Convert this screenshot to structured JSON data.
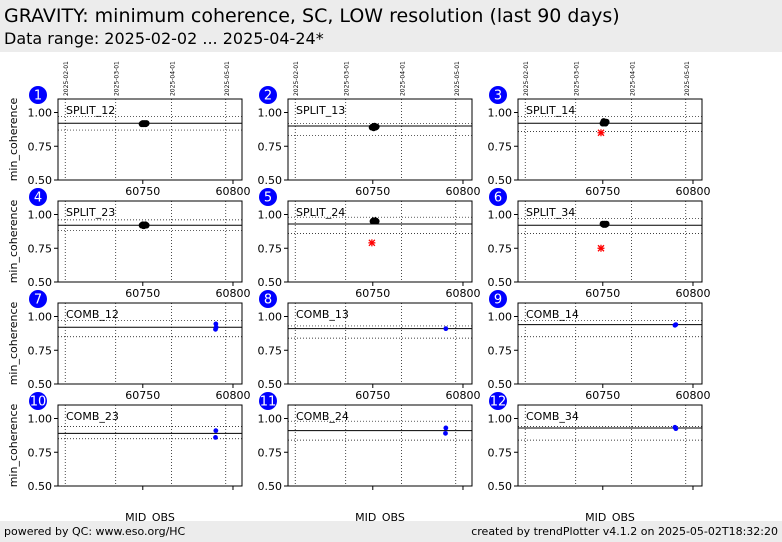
{
  "header": {
    "title": "GRAVITY: minimum coherence, SC, LOW resolution (last 90 days)",
    "subtitle": "Data range: 2025-02-02 ... 2025-04-24*"
  },
  "footer": {
    "left": "powered by QC: www.eso.org/HC",
    "right": "created by trendPlotter v4.1.2 on 2025-05-02T18:32:20"
  },
  "colors": {
    "header_bg": "#ececec",
    "badge": "#0000ff",
    "blue_points": "#0000ff",
    "red_points": "#ff0000",
    "black_points": "#000000"
  },
  "chart_data": {
    "type": "scatter",
    "layout": "4x3 grid of panels",
    "xlabel": "MJD_OBS",
    "ylabel": "min_coherence",
    "xlim": [
      60703,
      60805
    ],
    "ylim": [
      0.5,
      1.1
    ],
    "x_ticks": [
      60750,
      60800
    ],
    "y_ticks": [
      0.5,
      0.75,
      1.0
    ],
    "y_tick_labels": [
      "0.50",
      "0.75",
      "1.00"
    ],
    "date_ticks": [
      {
        "label": "2025-02-01",
        "mjd": 60707
      },
      {
        "label": "2025-03-01",
        "mjd": 60735
      },
      {
        "label": "2025-04-01",
        "mjd": 60766
      },
      {
        "label": "2025-05-01",
        "mjd": 60796
      }
    ],
    "panels": [
      {
        "num": "1",
        "label": "SPLIT_12",
        "mean": 0.92,
        "upper": 0.97,
        "lower": 0.87,
        "black": [
          [
            60749.5,
            0.915
          ],
          [
            60750,
            0.92
          ],
          [
            60750.5,
            0.915
          ],
          [
            60751,
            0.92
          ],
          [
            60751.5,
            0.915
          ],
          [
            60752,
            0.92
          ]
        ],
        "red": [],
        "blue": []
      },
      {
        "num": "2",
        "label": "SPLIT_13",
        "mean": 0.9,
        "upper": 0.92,
        "lower": 0.83,
        "black": [
          [
            60749.5,
            0.89
          ],
          [
            60750,
            0.895
          ],
          [
            60750.5,
            0.885
          ],
          [
            60751,
            0.9
          ],
          [
            60751.5,
            0.89
          ],
          [
            60752,
            0.895
          ]
        ],
        "red": [],
        "blue": []
      },
      {
        "num": "3",
        "label": "SPLIT_14",
        "mean": 0.92,
        "upper": 0.97,
        "lower": 0.86,
        "black": [
          [
            60750,
            0.92
          ],
          [
            60750.5,
            0.935
          ],
          [
            60751,
            0.925
          ],
          [
            60751.5,
            0.92
          ],
          [
            60752,
            0.93
          ]
        ],
        "red": [
          [
            60749,
            0.85
          ]
        ],
        "blue": []
      },
      {
        "num": "4",
        "label": "SPLIT_23",
        "mean": 0.92,
        "upper": 0.96,
        "lower": 0.88,
        "black": [
          [
            60749.5,
            0.92
          ],
          [
            60750,
            0.925
          ],
          [
            60750.5,
            0.915
          ],
          [
            60751,
            0.92
          ],
          [
            60751.5,
            0.925
          ],
          [
            60752,
            0.92
          ]
        ],
        "red": [],
        "blue": []
      },
      {
        "num": "5",
        "label": "SPLIT_24",
        "mean": 0.93,
        "upper": 0.98,
        "lower": 0.86,
        "black": [
          [
            60750,
            0.95
          ],
          [
            60750.5,
            0.955
          ],
          [
            60751,
            0.95
          ],
          [
            60751.5,
            0.955
          ],
          [
            60752,
            0.95
          ]
        ],
        "red": [
          [
            60749.5,
            0.79
          ]
        ],
        "blue": []
      },
      {
        "num": "6",
        "label": "SPLIT_34",
        "mean": 0.92,
        "upper": 0.97,
        "lower": 0.86,
        "black": [
          [
            60750,
            0.93
          ],
          [
            60750.5,
            0.925
          ],
          [
            60751,
            0.93
          ],
          [
            60751.5,
            0.925
          ],
          [
            60752,
            0.93
          ]
        ],
        "red": [
          [
            60749,
            0.75
          ]
        ],
        "blue": []
      },
      {
        "num": "7",
        "label": "COMB_12",
        "mean": 0.92,
        "upper": 0.97,
        "lower": 0.85,
        "black": [],
        "red": [],
        "blue": [
          [
            60790.5,
            0.945
          ],
          [
            60790.7,
            0.92
          ],
          [
            60790.3,
            0.905
          ]
        ]
      },
      {
        "num": "8",
        "label": "COMB_13",
        "mean": 0.91,
        "upper": 0.93,
        "lower": 0.84,
        "black": [],
        "red": [],
        "blue": [
          [
            60790.5,
            0.91
          ]
        ]
      },
      {
        "num": "9",
        "label": "COMB_14",
        "mean": 0.94,
        "upper": 0.97,
        "lower": 0.85,
        "black": [],
        "red": [],
        "blue": [
          [
            60790,
            0.935
          ],
          [
            60790.5,
            0.94
          ]
        ]
      },
      {
        "num": "10",
        "label": "COMB_23",
        "mean": 0.89,
        "upper": 0.94,
        "lower": 0.85,
        "black": [],
        "red": [],
        "blue": [
          [
            60790.5,
            0.91
          ],
          [
            60790.3,
            0.86
          ]
        ]
      },
      {
        "num": "11",
        "label": "COMB_24",
        "mean": 0.91,
        "upper": 0.98,
        "lower": 0.84,
        "black": [],
        "red": [],
        "blue": [
          [
            60790.5,
            0.93
          ],
          [
            60790.3,
            0.89
          ]
        ]
      },
      {
        "num": "12",
        "label": "COMB_34",
        "mean": 0.93,
        "upper": 0.94,
        "lower": 0.84,
        "black": [],
        "red": [],
        "blue": [
          [
            60790,
            0.935
          ],
          [
            60790.5,
            0.925
          ]
        ]
      }
    ]
  }
}
